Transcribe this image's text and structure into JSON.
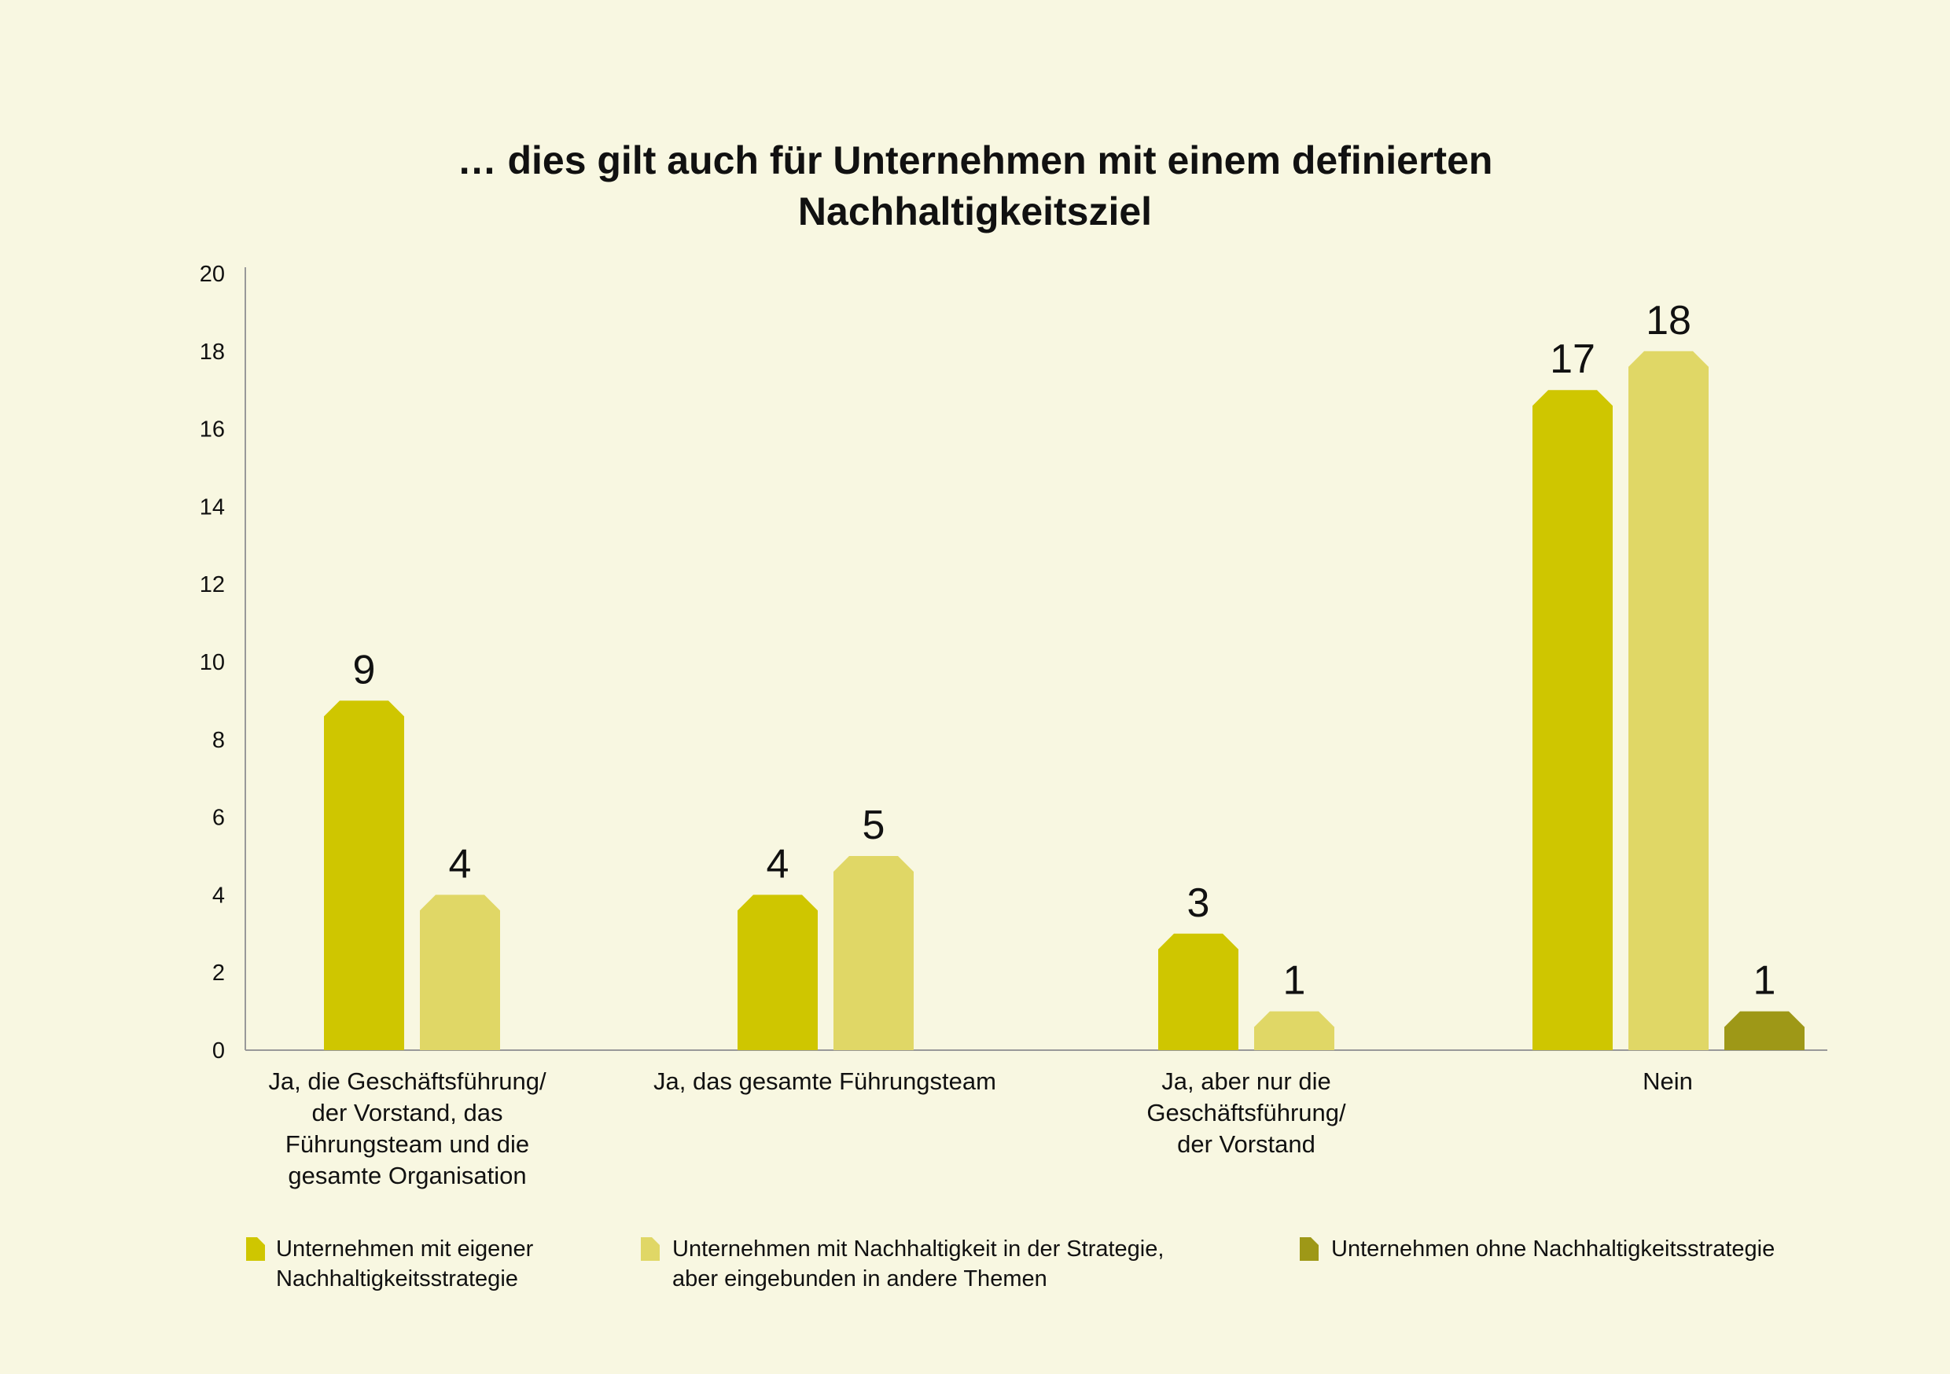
{
  "chart_data": {
    "type": "bar",
    "title": [
      "… dies gilt auch für Unternehmen mit einem definierten",
      "Nachhaltigkeitsziel"
    ],
    "xlabel": "",
    "ylabel": "",
    "ylim": [
      0,
      20
    ],
    "yticks": [
      "0",
      "2",
      "4",
      "6",
      "8",
      "10",
      "12",
      "14",
      "16",
      "18",
      "20"
    ],
    "grid": false,
    "legend_position": "bottom",
    "categories": [
      [
        "Ja, die Geschäftsführung/",
        "der Vorstand, das",
        "Führungsteam und die",
        "gesamte Organisation"
      ],
      [
        "Ja, das gesamte Führungsteam"
      ],
      [
        "Ja, aber nur die",
        "Geschäftsführung/",
        "der Vorstand"
      ],
      [
        "Nein"
      ]
    ],
    "series": [
      {
        "name": [
          "Unternehmen mit eigener",
          "Nachhaltigkeitsstrategie"
        ],
        "color": "#cfc600",
        "values": [
          9,
          4,
          3,
          17
        ],
        "labels": [
          "9",
          "4",
          "3",
          "17"
        ]
      },
      {
        "name": [
          "Unternehmen mit Nachhaltigkeit in der Strategie,",
          "aber eingebunden in andere Themen"
        ],
        "color": "#e0d766",
        "values": [
          4,
          5,
          1,
          18
        ],
        "labels": [
          "4",
          "5",
          "1",
          "18"
        ]
      },
      {
        "name": [
          "Unternehmen ohne Nachhaltigkeitsstrategie"
        ],
        "color": "#9e9817",
        "values": [
          null,
          null,
          null,
          1
        ],
        "labels": [
          null,
          null,
          null,
          "1"
        ]
      }
    ],
    "axis_color": "#999999"
  }
}
